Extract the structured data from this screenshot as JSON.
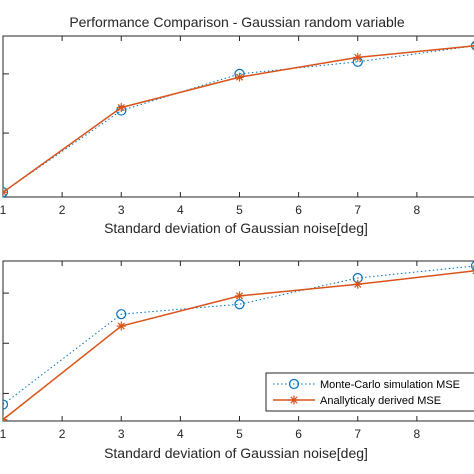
{
  "figure": {
    "title": "Performance Comparison - Gaussian random variable"
  },
  "chart_data": [
    {
      "type": "line",
      "title": "Performance Comparison - Gaussian random variable",
      "xlabel": "Standard deviation of Gaussian noise[deg]",
      "ylabel": "",
      "xlim": [
        1,
        9
      ],
      "ylog": true,
      "x_ticks": [
        "1",
        "2",
        "3",
        "4",
        "5",
        "6",
        "7",
        "8"
      ],
      "grid": false,
      "series": [
        {
          "name": "Monte-Carlo simulation MSE",
          "color": "#0072BD",
          "line": "dotted",
          "marker": "circle",
          "x": [
            1,
            3,
            5,
            7,
            9
          ],
          "y": [
            0.01,
            0.24,
            1.0,
            1.6,
            3.0
          ]
        },
        {
          "name": "Anallyticaly derived MSE",
          "color": "#D95319",
          "line": "solid",
          "marker": "asterisk",
          "x": [
            1,
            3,
            5,
            7,
            9
          ],
          "y": [
            0.01,
            0.27,
            0.88,
            1.9,
            3.0
          ]
        }
      ]
    },
    {
      "type": "line",
      "title": "",
      "xlabel": "Standard deviation of Gaussian noise[deg]",
      "ylabel": "",
      "xlim": [
        1,
        9
      ],
      "ylog": true,
      "x_ticks": [
        "1",
        "2",
        "3",
        "4",
        "5",
        "6",
        "7",
        "8"
      ],
      "grid": false,
      "legend": "bottom-right",
      "series": [
        {
          "name": "Monte-Carlo simulation MSE",
          "color": "#0072BD",
          "line": "dotted",
          "marker": "circle",
          "x": [
            1,
            3,
            5,
            7,
            9
          ],
          "y": [
            0.006,
            0.38,
            0.6,
            2.0,
            3.5
          ]
        },
        {
          "name": "Anallyticaly derived MSE",
          "color": "#D95319",
          "line": "solid",
          "marker": "asterisk",
          "x": [
            1,
            3,
            5,
            7,
            9
          ],
          "y": [
            0.003,
            0.22,
            0.88,
            1.5,
            2.8
          ]
        }
      ]
    }
  ]
}
